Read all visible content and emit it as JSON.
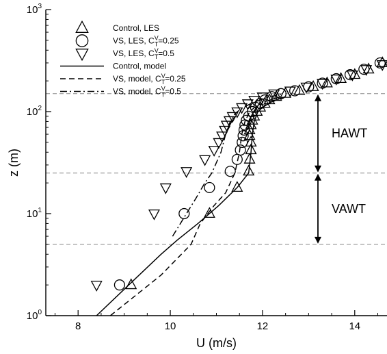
{
  "chart_data": {
    "type": "scatter",
    "xlabel": "U (m/s)",
    "ylabel": "z (m)",
    "xlim": [
      7.3,
      14.7
    ],
    "ylim": [
      1,
      1000
    ],
    "yscale": "log",
    "xticks": [
      8,
      10,
      12,
      14
    ],
    "xtick_labels": [
      "8",
      "10",
      "12",
      "14"
    ],
    "yticks": [
      1,
      10,
      100,
      1000
    ],
    "ytick_labels": [
      {
        "base": "10",
        "exp": "0"
      },
      {
        "base": "10",
        "exp": "1"
      },
      {
        "base": "10",
        "exp": "2"
      },
      {
        "base": "10",
        "exp": "3"
      }
    ],
    "legend_position": "top-left",
    "series": [
      {
        "name": "Control, LES",
        "label_parts": [
          "Control, LES",
          "",
          "",
          ""
        ],
        "kind": "markers",
        "marker": "triangle-up",
        "points": [
          [
            9.15,
            2.0
          ],
          [
            10.85,
            10.0
          ],
          [
            11.45,
            18.0
          ],
          [
            11.7,
            26.0
          ],
          [
            11.72,
            34.0
          ],
          [
            11.75,
            42.0
          ],
          [
            11.75,
            50.0
          ],
          [
            11.72,
            58.0
          ],
          [
            11.72,
            66.0
          ],
          [
            11.75,
            74.0
          ],
          [
            11.78,
            82.0
          ],
          [
            11.82,
            90.0
          ],
          [
            11.88,
            100.0
          ],
          [
            11.95,
            110.0
          ],
          [
            12.05,
            120.0
          ],
          [
            12.15,
            130.0
          ],
          [
            12.3,
            140.0
          ],
          [
            12.5,
            150.0
          ],
          [
            12.8,
            160.0
          ],
          [
            13.1,
            175.0
          ],
          [
            13.4,
            190.0
          ],
          [
            13.7,
            210.0
          ],
          [
            14.0,
            230.0
          ],
          [
            14.3,
            260.0
          ],
          [
            14.6,
            300.0
          ]
        ]
      },
      {
        "name": "VS, LES, CTV=0.25",
        "label_parts": [
          "VS, LES, C",
          "V",
          "T",
          "=0.25"
        ],
        "kind": "markers",
        "marker": "circle",
        "points": [
          [
            8.9,
            2.0
          ],
          [
            10.3,
            10.0
          ],
          [
            10.85,
            18.0
          ],
          [
            11.3,
            26.0
          ],
          [
            11.45,
            34.0
          ],
          [
            11.52,
            42.0
          ],
          [
            11.56,
            50.0
          ],
          [
            11.58,
            58.0
          ],
          [
            11.6,
            66.0
          ],
          [
            11.62,
            74.0
          ],
          [
            11.65,
            82.0
          ],
          [
            11.7,
            90.0
          ],
          [
            11.78,
            100.0
          ],
          [
            11.85,
            110.0
          ],
          [
            11.95,
            120.0
          ],
          [
            12.05,
            130.0
          ],
          [
            12.2,
            140.0
          ],
          [
            12.4,
            150.0
          ],
          [
            12.7,
            160.0
          ],
          [
            13.0,
            175.0
          ],
          [
            13.3,
            190.0
          ],
          [
            13.6,
            210.0
          ],
          [
            13.9,
            230.0
          ],
          [
            14.2,
            260.0
          ],
          [
            14.55,
            300.0
          ]
        ]
      },
      {
        "name": "VS, LES, CTV=0.5",
        "label_parts": [
          "VS, LES, C",
          "V",
          "T",
          "=0.5"
        ],
        "kind": "markers",
        "marker": "triangle-down",
        "points": [
          [
            8.4,
            2.0
          ],
          [
            9.65,
            10.0
          ],
          [
            9.9,
            18.0
          ],
          [
            10.35,
            26.0
          ],
          [
            10.75,
            34.0
          ],
          [
            10.95,
            42.0
          ],
          [
            11.05,
            50.0
          ],
          [
            11.12,
            58.0
          ],
          [
            11.18,
            66.0
          ],
          [
            11.22,
            74.0
          ],
          [
            11.28,
            82.0
          ],
          [
            11.35,
            90.0
          ],
          [
            11.45,
            100.0
          ],
          [
            11.55,
            110.0
          ],
          [
            11.68,
            120.0
          ],
          [
            11.82,
            130.0
          ],
          [
            12.0,
            140.0
          ],
          [
            12.25,
            150.0
          ],
          [
            12.6,
            160.0
          ],
          [
            12.95,
            175.0
          ],
          [
            13.3,
            190.0
          ],
          [
            13.6,
            210.0
          ],
          [
            13.95,
            230.0
          ],
          [
            14.25,
            260.0
          ],
          [
            14.6,
            290.0
          ]
        ]
      },
      {
        "name": "Control, model",
        "label_parts": [
          "Control, model",
          "",
          "",
          ""
        ],
        "kind": "line",
        "dash": "solid",
        "points": [
          [
            8.4,
            1.0
          ],
          [
            9.1,
            2.0
          ],
          [
            9.8,
            4.0
          ],
          [
            10.15,
            5.5
          ],
          [
            10.6,
            8.0
          ],
          [
            11.05,
            12.0
          ],
          [
            11.45,
            18.0
          ],
          [
            11.7,
            25.0
          ],
          [
            11.75,
            40.0
          ],
          [
            11.78,
            60.0
          ],
          [
            11.82,
            80.0
          ],
          [
            11.9,
            100.0
          ],
          [
            12.0,
            110.0
          ],
          [
            12.2,
            125.0
          ],
          [
            12.5,
            140.0
          ]
        ]
      },
      {
        "name": "VS, model, CTV=0.25",
        "label_parts": [
          "VS, model, C",
          "V",
          "T",
          "=0.25"
        ],
        "kind": "line",
        "dash": "dashed",
        "points": [
          [
            8.7,
            1.0
          ],
          [
            9.8,
            2.5
          ],
          [
            10.45,
            5.0
          ],
          [
            10.65,
            8.0
          ],
          [
            10.95,
            12.0
          ],
          [
            11.2,
            16.0
          ],
          [
            11.4,
            25.0
          ],
          [
            11.5,
            40.0
          ],
          [
            11.55,
            60.0
          ],
          [
            11.62,
            80.0
          ],
          [
            11.72,
            100.0
          ],
          [
            11.85,
            112.0
          ],
          [
            12.05,
            125.0
          ],
          [
            12.4,
            140.0
          ]
        ]
      },
      {
        "name": "VS, model, CTV=0.5",
        "label_parts": [
          "VS, model, C",
          "V",
          "T",
          "=0.5"
        ],
        "kind": "line",
        "dash": "dashdot",
        "points": [
          [
            10.05,
            6.0
          ],
          [
            10.35,
            10.0
          ],
          [
            10.55,
            14.0
          ],
          [
            10.75,
            20.0
          ],
          [
            10.9,
            25.0
          ],
          [
            11.1,
            40.0
          ],
          [
            11.2,
            60.0
          ],
          [
            11.3,
            80.0
          ],
          [
            11.4,
            95.0
          ],
          [
            11.55,
            108.0
          ],
          [
            11.75,
            120.0
          ],
          [
            12.05,
            135.0
          ],
          [
            12.4,
            148.0
          ]
        ]
      }
    ],
    "reference_lines": [
      {
        "name": "top-of-hawt",
        "z": 150
      },
      {
        "name": "vawt-hawt-boundary",
        "z": 25
      },
      {
        "name": "bottom-of-vawt",
        "z": 5
      }
    ],
    "annotations": [
      {
        "name": "hawt-label",
        "text": "HAWT",
        "z_from": 25,
        "z_to": 150
      },
      {
        "name": "vawt-label",
        "text": "VAWT",
        "z_from": 5,
        "z_to": 25
      }
    ]
  }
}
